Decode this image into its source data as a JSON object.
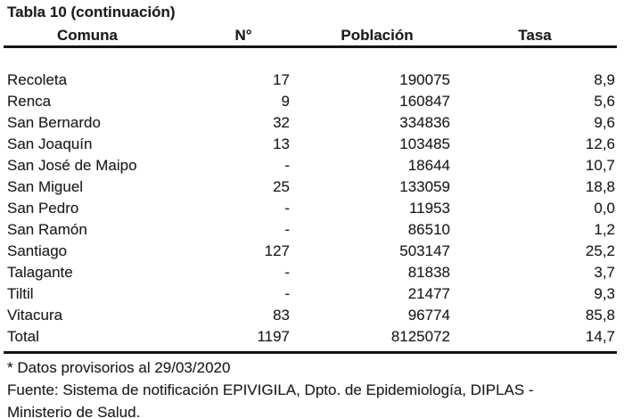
{
  "title": "Tabla 10 (continuación)",
  "table": {
    "headers": [
      "Comuna",
      "N°",
      "Población",
      "Tasa"
    ],
    "rows": [
      [
        "Recoleta",
        "17",
        "190075",
        "8,9"
      ],
      [
        "Renca",
        "9",
        "160847",
        "5,6"
      ],
      [
        "San Bernardo",
        "32",
        "334836",
        "9,6"
      ],
      [
        "San Joaquín",
        "13",
        "103485",
        "12,6"
      ],
      [
        "San José de Maipo",
        "-",
        "18644",
        "10,7"
      ],
      [
        "San Miguel",
        "25",
        "133059",
        "18,8"
      ],
      [
        "San Pedro",
        "-",
        "11953",
        "0,0"
      ],
      [
        "San Ramón",
        "-",
        "86510",
        "1,2"
      ],
      [
        "Santiago",
        "127",
        "503147",
        "25,2"
      ],
      [
        "Talagante",
        "-",
        "81838",
        "3,7"
      ],
      [
        "Tiltil",
        "-",
        "21477",
        "9,3"
      ],
      [
        "Vitacura",
        "83",
        "96774",
        "85,8"
      ],
      [
        "Total",
        "1197",
        "8125072",
        "14,7"
      ]
    ]
  },
  "footnotes": [
    "* Datos provisorios al 29/03/2020",
    "Fuente: Sistema de notificación EPIVIGILA, Dpto. de Epidemiología, DIPLAS -",
    "Ministerio de Salud."
  ],
  "colors": {
    "text": "#1d1d1d",
    "rule": "#141414",
    "background": "#ffffff"
  }
}
